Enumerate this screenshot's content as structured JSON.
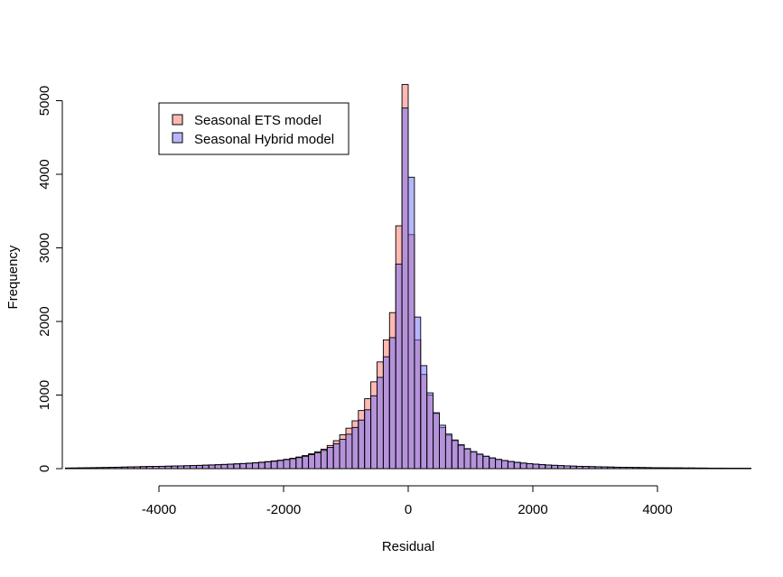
{
  "chart_data": {
    "type": "bar",
    "xlabel": "Residual",
    "ylabel": "Frequency",
    "xlim": [
      -5500,
      5500
    ],
    "ylim": [
      0,
      5300
    ],
    "x_ticks": [
      -4000,
      -2000,
      0,
      2000,
      4000
    ],
    "x_tick_labels": [
      "-4000",
      "-2000",
      "0",
      "2000",
      "4000"
    ],
    "y_ticks": [
      0,
      1000,
      2000,
      3000,
      4000,
      5000
    ],
    "y_tick_labels": [
      "0",
      "1000",
      "2000",
      "3000",
      "4000",
      "5000"
    ],
    "grid": false,
    "legend_position": "top-left",
    "bin_width": 100,
    "bin_start": -5500,
    "series": [
      {
        "name": "Seasonal ETS model",
        "color": "#FFB6B0",
        "values": [
          8,
          9,
          10,
          12,
          14,
          15,
          16,
          18,
          20,
          22,
          24,
          26,
          28,
          30,
          31,
          32,
          34,
          36,
          38,
          40,
          42,
          45,
          48,
          51,
          54,
          58,
          62,
          66,
          70,
          75,
          81,
          88,
          96,
          105,
          115,
          127,
          141,
          158,
          178,
          202,
          230,
          265,
          315,
          380,
          460,
          550,
          650,
          790,
          950,
          1180,
          1450,
          1750,
          2120,
          3300,
          5220,
          3180,
          1750,
          1280,
          1000,
          750,
          560,
          455,
          380,
          315,
          265,
          225,
          192,
          165,
          142,
          123,
          107,
          94,
          83,
          74,
          66,
          59,
          53,
          48,
          44,
          40,
          37,
          34,
          31,
          29,
          27,
          25,
          23,
          21,
          19,
          18,
          17,
          16,
          15,
          14,
          13,
          12,
          11,
          10,
          10,
          9,
          9,
          8,
          8,
          7,
          7,
          7,
          6,
          6,
          6,
          5
        ]
      },
      {
        "name": "Seasonal Hybrid model",
        "color": "#B0B0FF",
        "values": [
          8,
          9,
          10,
          12,
          13,
          14,
          15,
          17,
          19,
          21,
          23,
          25,
          27,
          29,
          30,
          31,
          33,
          35,
          37,
          39,
          41,
          43,
          46,
          49,
          52,
          56,
          60,
          64,
          68,
          72,
          78,
          84,
          92,
          100,
          110,
          122,
          135,
          150,
          168,
          190,
          216,
          248,
          288,
          338,
          398,
          468,
          560,
          660,
          800,
          990,
          1240,
          1520,
          1780,
          2780,
          4900,
          3960,
          2060,
          1400,
          1030,
          760,
          590,
          470,
          390,
          325,
          272,
          232,
          198,
          170,
          147,
          127,
          111,
          98,
          87,
          77,
          69,
          62,
          56,
          50,
          46,
          42,
          38,
          35,
          32,
          30,
          28,
          26,
          24,
          22,
          20,
          19,
          18,
          16,
          15,
          14,
          13,
          12,
          11,
          10,
          10,
          9,
          9,
          8,
          8,
          7,
          7,
          7,
          6,
          6,
          6,
          5
        ]
      }
    ]
  }
}
